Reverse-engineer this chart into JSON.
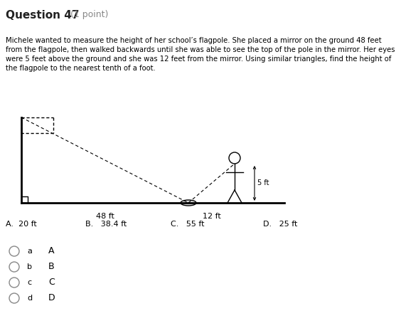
{
  "title_bold": "Question 47",
  "title_normal": " (1 point)",
  "body_text": "Michele wanted to measure the height of her school’s flagpole. She placed a mirror on the ground 48 feet\nfrom the flagpole, then walked backwards until she was able to see the top of the pole in the mirror. Her eyes\nwere 5 feet above the ground and she was 12 feet from the mirror. Using similar triangles, find the height of\nthe flagpole to the nearest tenth of a foot.",
  "choices_text": "A.  20 ft              B.   38.4 ft              C.   55 ft              D.   25 ft",
  "radio_labels": [
    "a",
    "b",
    "c",
    "d"
  ],
  "radio_choice_labels": [
    "A",
    "B",
    "C",
    "D"
  ],
  "label_48ft": "48 ft",
  "label_12ft": "12 ft",
  "label_5ft": "5 ft",
  "bg_color": "#ffffff",
  "text_color": "#000000",
  "gray_color": "#666666",
  "line_color": "#000000",
  "title_color": "#333333"
}
